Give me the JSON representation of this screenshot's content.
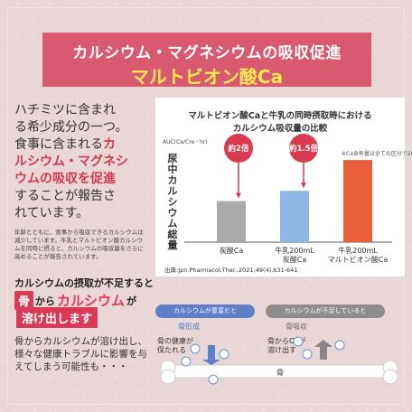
{
  "header": {
    "title": "カルシウム・マグネシウムの吸収促進",
    "subtitle": "マルトビオン酸Ca"
  },
  "intro": {
    "line1": "ハチミツに含まれ",
    "line2": "る希少成分の一つ。",
    "line3": "食事に含まれる",
    "red1": "カ",
    "red2": "ルシウム・マグネシ",
    "red3": "ウムの吸収を促進",
    "line4": "することが報告さ",
    "line5": "れています。"
  },
  "note": "年齢とともに、食事から吸収できるカルシウムは減少しています。牛乳とマルトビオン酸カルシウムを同時に摂ると、カルシウムの吸収量をさらに高めることが報告されています。",
  "chart_panel": {
    "title_line1": "マルトビオン酸Caと牛乳の同時摂取時における",
    "title_line2": "カルシウム吸収量の比較",
    "y_unit": "AUC(Ca/Cre・hr)",
    "y_axis_label": "尿中カルシウム総量",
    "note": "※Ca含有量は全ての区分で267mg",
    "source": "出典:Jpn.Pharmacol.Ther.,2021;49(4),631-641"
  },
  "chart_data": {
    "type": "bar",
    "categories": [
      "炭酸Ca",
      "牛乳200mL\n炭酸Ca",
      "牛乳200mL\nマルトビオン酸Ca"
    ],
    "values": [
      1.0,
      1.25,
      2.0
    ],
    "colors": [
      "#a9aaab",
      "#8fb7e3",
      "#e95f3a"
    ],
    "annotations": [
      "約2倍",
      "約1.5倍"
    ],
    "title": "マルトビオン酸Caと牛乳の同時摂取時における カルシウム吸収量の比較",
    "ylabel": "尿中カルシウム総量",
    "ylim": [
      0,
      2.2
    ]
  },
  "bottom": {
    "warn1": "カルシウムの摂取が不足すると",
    "bone": "骨",
    "kara": "から",
    "calcium": "カルシウム",
    "ga": "が",
    "melt": "溶け出します",
    "tail": "骨からカルシウムが溶け出し、様々な健康トラブルに影響を与えてしまう可能性も・・・",
    "pill1": "カルシウムが豊富だと",
    "pill2": "カルシウムが不足していると",
    "sub1": "骨形成",
    "sub2": "骨吸収",
    "small1a": "骨の健康が",
    "small1b": "保たれる",
    "small2a": "骨からCaが",
    "small2b": "溶け出す",
    "bone_label": "骨",
    "ca_label": "Ca"
  }
}
